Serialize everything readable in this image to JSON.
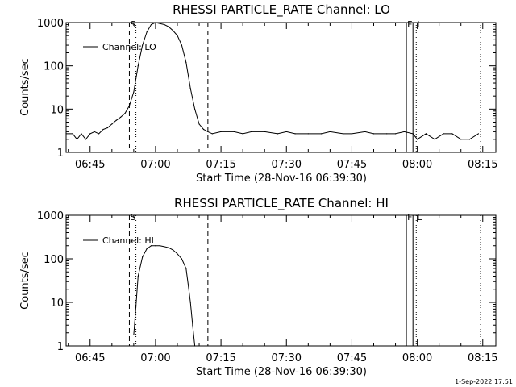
{
  "chart_data": [
    {
      "type": "line",
      "title": "RHESSI PARTICLE_RATE Channel: LO",
      "xlabel": "Start Time (28-Nov-16 06:39:30)",
      "ylabel": "Counts/sec",
      "yscale": "log",
      "ylim": [
        1,
        1000
      ],
      "xlim": [
        "06:39:30",
        "08:18:00"
      ],
      "x_ticks": [
        "06:45",
        "07:00",
        "07:15",
        "07:30",
        "07:45",
        "08:00",
        "08:15"
      ],
      "y_ticks": [
        "1",
        "10",
        "100",
        "1000"
      ],
      "legend": {
        "position": "top-left",
        "entries": [
          "Channel: LO"
        ]
      },
      "grid": false,
      "markers": [
        {
          "label": "S",
          "time": "06:54:00",
          "style": "dashed"
        },
        {
          "label": "",
          "time": "06:55:30",
          "style": "dotted"
        },
        {
          "label": "",
          "time": "07:12:00",
          "style": "dashed"
        },
        {
          "label": "F",
          "time": "07:57:30",
          "style": "solid"
        },
        {
          "label": "",
          "time": "07:59:00",
          "style": "solid"
        },
        {
          "label": "L",
          "time": "07:59:45",
          "style": "dotted"
        },
        {
          "label": "",
          "time": "08:14:30",
          "style": "dotted"
        }
      ],
      "series": [
        {
          "name": "Channel: LO",
          "x": [
            "06:39:30",
            "06:41:00",
            "06:42:00",
            "06:43:00",
            "06:44:00",
            "06:45:00",
            "06:46:00",
            "06:47:00",
            "06:48:00",
            "06:49:00",
            "06:50:00",
            "06:51:00",
            "06:52:00",
            "06:53:00",
            "06:54:00",
            "06:55:00",
            "06:56:00",
            "06:57:00",
            "06:58:00",
            "06:59:00",
            "07:00:00",
            "07:01:00",
            "07:02:00",
            "07:03:00",
            "07:04:00",
            "07:05:00",
            "07:06:00",
            "07:07:00",
            "07:08:00",
            "07:09:00",
            "07:10:00",
            "07:11:00",
            "07:12:00",
            "07:13:00",
            "07:15:00",
            "07:18:00",
            "07:20:00",
            "07:22:00",
            "07:25:00",
            "07:28:00",
            "07:30:00",
            "07:32:00",
            "07:35:00",
            "07:38:00",
            "07:40:00",
            "07:43:00",
            "07:45:00",
            "07:48:00",
            "07:50:00",
            "07:53:00",
            "07:55:00",
            "07:57:00",
            "07:59:00",
            "08:00:00",
            "08:02:00",
            "08:04:00",
            "08:06:00",
            "08:08:00",
            "08:10:00",
            "08:12:00",
            "08:14:00"
          ],
          "values": [
            2.7,
            2.7,
            2,
            2.7,
            2,
            2.7,
            3,
            2.7,
            3.4,
            3.7,
            4.5,
            5.5,
            6.5,
            8,
            12,
            25,
            100,
            300,
            600,
            900,
            1000,
            950,
            900,
            800,
            650,
            500,
            300,
            120,
            30,
            10,
            4.5,
            3.4,
            3,
            2.7,
            3,
            3,
            2.7,
            3,
            3,
            2.7,
            3,
            2.7,
            2.7,
            2.7,
            3,
            2.7,
            2.7,
            3,
            2.7,
            2.7,
            2.7,
            3,
            2.7,
            2,
            2.7,
            2,
            2.7,
            2.7,
            2,
            2,
            2.7
          ]
        }
      ]
    },
    {
      "type": "line",
      "title": "RHESSI PARTICLE_RATE Channel: HI",
      "xlabel": "Start Time (28-Nov-16 06:39:30)",
      "ylabel": "Counts/sec",
      "yscale": "log",
      "ylim": [
        1,
        1000
      ],
      "xlim": [
        "06:39:30",
        "08:18:00"
      ],
      "x_ticks": [
        "06:45",
        "07:00",
        "07:15",
        "07:30",
        "07:45",
        "08:00",
        "08:15"
      ],
      "y_ticks": [
        "1",
        "10",
        "100",
        "1000"
      ],
      "legend": {
        "position": "top-left",
        "entries": [
          "Channel: HI"
        ]
      },
      "grid": false,
      "markers": [
        {
          "label": "S",
          "time": "06:54:00",
          "style": "dashed"
        },
        {
          "label": "",
          "time": "06:55:30",
          "style": "dotted"
        },
        {
          "label": "",
          "time": "07:12:00",
          "style": "dashed"
        },
        {
          "label": "F",
          "time": "07:57:30",
          "style": "solid"
        },
        {
          "label": "",
          "time": "07:59:00",
          "style": "solid"
        },
        {
          "label": "L",
          "time": "07:59:45",
          "style": "dotted"
        },
        {
          "label": "",
          "time": "08:14:30",
          "style": "dotted"
        }
      ],
      "series": [
        {
          "name": "Channel: HI",
          "x": [
            "06:55:00",
            "06:55:30",
            "06:56:00",
            "06:57:00",
            "06:58:00",
            "06:59:00",
            "07:00:00",
            "07:01:00",
            "07:02:00",
            "07:03:00",
            "07:04:00",
            "07:05:00",
            "07:06:00",
            "07:07:00",
            "07:07:30",
            "07:08:00",
            "07:08:30",
            "07:09:00"
          ],
          "values": [
            1.8,
            8,
            40,
            110,
            170,
            200,
            200,
            200,
            190,
            180,
            160,
            130,
            100,
            60,
            25,
            10,
            3,
            1
          ]
        }
      ]
    }
  ],
  "footer": {
    "timestamp": "1-Sep-2022 17:51"
  }
}
